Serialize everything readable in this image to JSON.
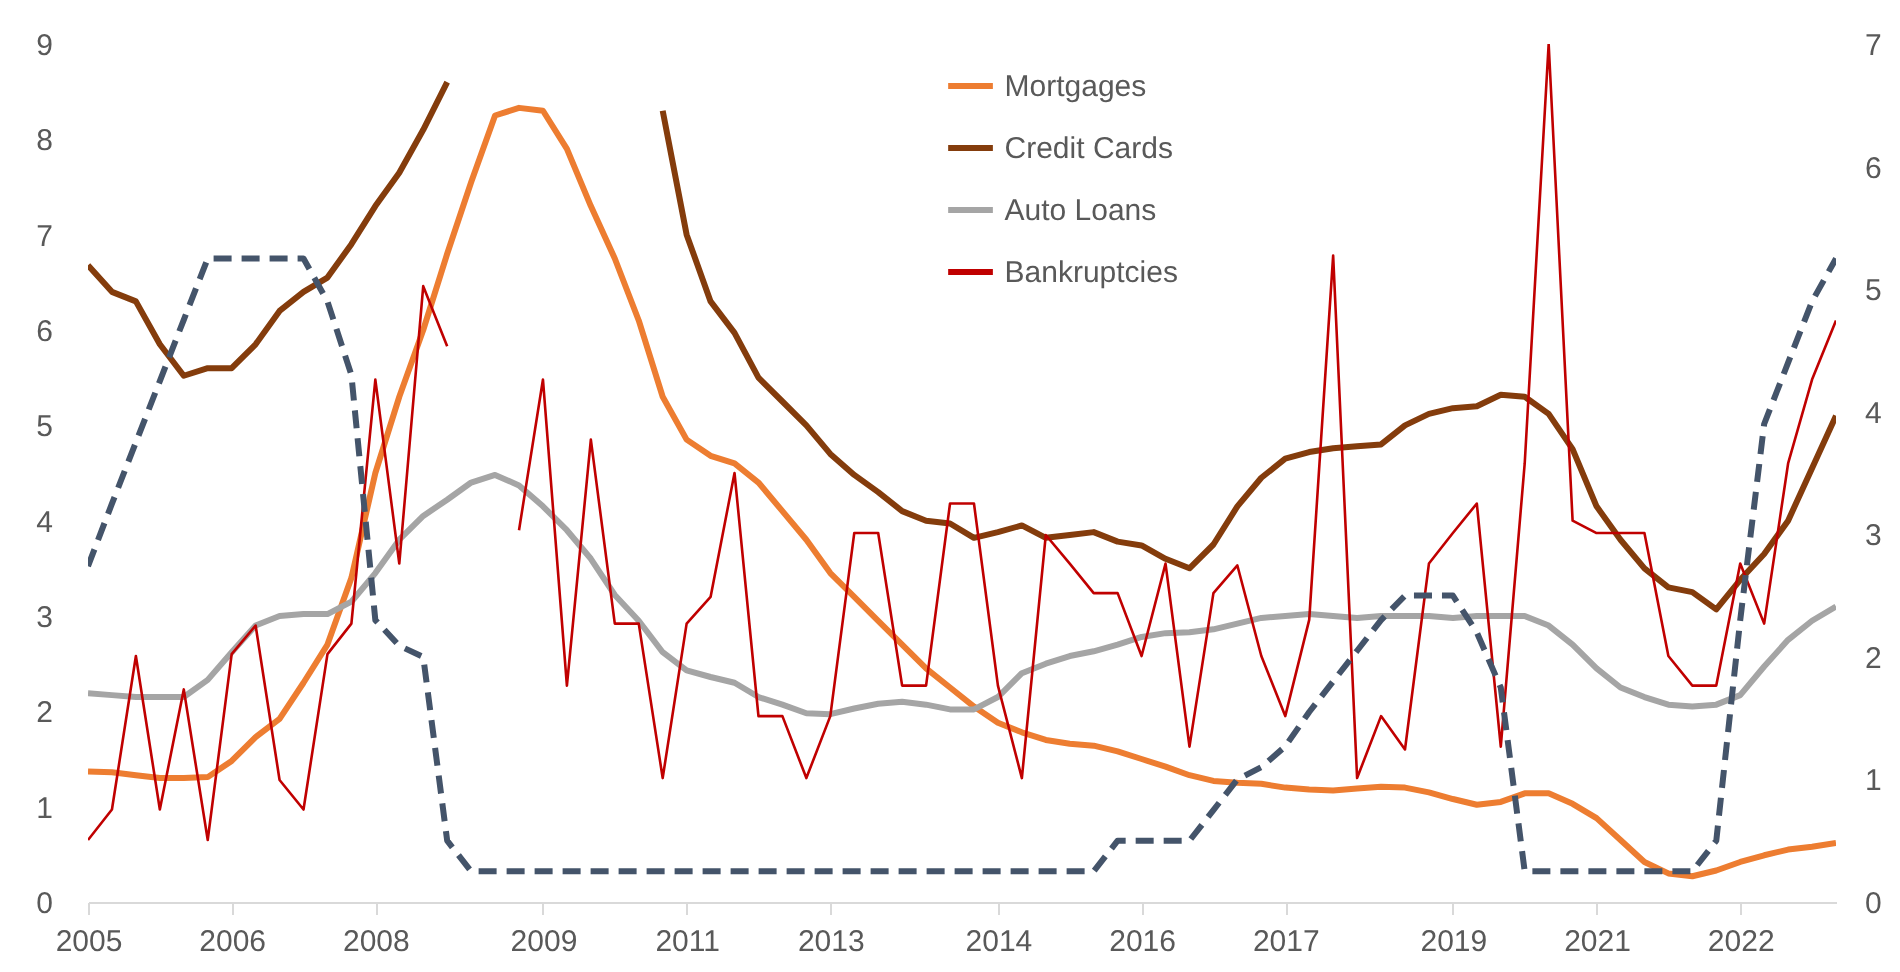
{
  "chart_data": {
    "type": "line",
    "categories": [
      "2005",
      null,
      null,
      null,
      null,
      null,
      "2006",
      null,
      null,
      null,
      null,
      null,
      "2008",
      null,
      null,
      null,
      null,
      null,
      null,
      "2009",
      null,
      null,
      null,
      null,
      null,
      "2011",
      null,
      null,
      null,
      null,
      null,
      "2013",
      null,
      null,
      null,
      null,
      null,
      null,
      "2014",
      null,
      null,
      null,
      null,
      null,
      "2016",
      null,
      null,
      null,
      null,
      null,
      "2017",
      null,
      null,
      null,
      null,
      null,
      null,
      "2019",
      null,
      null,
      null,
      null,
      null,
      "2021",
      null,
      null,
      null,
      null,
      null,
      "2022",
      null,
      null,
      null,
      null
    ],
    "series": [
      {
        "name": "Mortgages",
        "color": "#ed7d31",
        "type": "line",
        "values": [
          1.37,
          1.36,
          1.33,
          1.3,
          1.3,
          1.31,
          1.48,
          1.73,
          1.92,
          2.3,
          2.7,
          3.4,
          4.5,
          5.3,
          6.0,
          6.8,
          7.55,
          8.25,
          8.33,
          8.3,
          7.9,
          7.3,
          6.75,
          6.1,
          5.3,
          4.85,
          4.68,
          4.6,
          4.4,
          4.1,
          3.8,
          3.45,
          3.2,
          2.95,
          2.7,
          2.45,
          2.25,
          2.05,
          1.88,
          1.78,
          1.7,
          1.66,
          1.64,
          1.58,
          1.5,
          1.42,
          1.33,
          1.27,
          1.25,
          1.24,
          1.2,
          1.18,
          1.17,
          1.19,
          1.21,
          1.2,
          1.15,
          1.08,
          1.02,
          1.05,
          1.14,
          1.14,
          1.03,
          0.88,
          0.65,
          0.42,
          0.3,
          0.27,
          0.33,
          0.42,
          0.49,
          0.55,
          0.58,
          0.62
        ]
      },
      {
        "name": "Credit Cards",
        "color": "#843c0c",
        "type": "line",
        "values": [
          6.68,
          6.4,
          6.3,
          5.85,
          5.52,
          5.6,
          5.6,
          5.85,
          6.2,
          6.4,
          6.55,
          6.9,
          7.3,
          7.65,
          8.1,
          8.6,
          null,
          null,
          null,
          null,
          null,
          null,
          null,
          null,
          8.3,
          7.0,
          6.3,
          5.97,
          5.5,
          5.25,
          5.0,
          4.7,
          4.48,
          4.3,
          4.1,
          4.0,
          3.97,
          3.82,
          3.88,
          3.95,
          3.82,
          3.85,
          3.88,
          3.78,
          3.74,
          3.6,
          3.5,
          3.75,
          4.15,
          4.45,
          4.65,
          4.72,
          4.76,
          4.78,
          4.8,
          5.0,
          5.12,
          5.18,
          5.2,
          5.32,
          5.3,
          5.12,
          4.75,
          4.15,
          3.8,
          3.5,
          3.3,
          3.25,
          3.07,
          3.38,
          3.65,
          4.0,
          4.55,
          5.1
        ]
      },
      {
        "name": "Auto Loans",
        "color": "#a5a5a5",
        "type": "line",
        "values": [
          2.19,
          2.17,
          2.15,
          2.15,
          2.15,
          2.33,
          2.62,
          2.9,
          3.0,
          3.02,
          3.02,
          3.15,
          3.45,
          3.8,
          4.05,
          4.22,
          4.4,
          4.48,
          4.37,
          4.15,
          3.9,
          3.6,
          3.22,
          2.95,
          2.62,
          2.43,
          2.36,
          2.3,
          2.15,
          2.07,
          1.98,
          1.97,
          2.03,
          2.08,
          2.1,
          2.07,
          2.02,
          2.02,
          2.15,
          2.4,
          2.5,
          2.58,
          2.63,
          2.7,
          2.78,
          2.82,
          2.83,
          2.86,
          2.92,
          2.98,
          3.0,
          3.02,
          3.0,
          2.98,
          3.0,
          3.0,
          3.0,
          2.98,
          3.0,
          3.0,
          3.0,
          2.9,
          2.7,
          2.45,
          2.25,
          2.15,
          2.07,
          2.05,
          2.07,
          2.17,
          2.47,
          2.75,
          2.95,
          3.1
        ]
      },
      {
        "name": "Bankruptcies",
        "color": "#c00000",
        "type": "line",
        "values": [
          0.65,
          0.97,
          2.58,
          0.97,
          2.23,
          0.65,
          2.6,
          2.9,
          1.28,
          0.97,
          2.6,
          2.92,
          5.48,
          3.55,
          6.46,
          5.83,
          null,
          null,
          3.9,
          5.48,
          2.27,
          4.85,
          2.92,
          2.92,
          1.3,
          2.92,
          3.2,
          4.5,
          1.95,
          1.95,
          1.3,
          1.95,
          3.87,
          3.87,
          2.27,
          2.27,
          4.18,
          4.18,
          2.27,
          1.3,
          3.85,
          3.55,
          3.24,
          3.24,
          2.58,
          3.55,
          1.63,
          3.24,
          3.53,
          2.58,
          1.95,
          2.96,
          6.78,
          1.3,
          1.95,
          1.6,
          3.55,
          3.87,
          4.18,
          1.63,
          4.6,
          9.0,
          4.0,
          3.87,
          3.87,
          3.87,
          2.58,
          2.27,
          2.27,
          3.55,
          2.92,
          4.6,
          5.48,
          6.1
        ]
      },
      {
        "color": "#44546a",
        "type": "line",
        "axis": "y2",
        "line_style": "dashed",
        "values": [
          2.74,
          3.25,
          3.75,
          4.25,
          4.75,
          5.25,
          5.25,
          5.25,
          5.25,
          5.25,
          4.9,
          4.3,
          2.3,
          2.09,
          2.0,
          0.5,
          0.25,
          0.25,
          0.25,
          0.25,
          0.25,
          0.25,
          0.25,
          0.25,
          0.25,
          0.25,
          0.25,
          0.25,
          0.25,
          0.25,
          0.25,
          0.25,
          0.25,
          0.25,
          0.25,
          0.25,
          0.25,
          0.25,
          0.25,
          0.25,
          0.25,
          0.25,
          0.25,
          0.5,
          0.5,
          0.5,
          0.5,
          0.75,
          1.0,
          1.1,
          1.27,
          1.55,
          1.8,
          2.05,
          2.3,
          2.5,
          2.5,
          2.5,
          2.2,
          1.75,
          0.25,
          0.25,
          0.25,
          0.25,
          0.25,
          0.25,
          0.25,
          0.25,
          0.5,
          2.3,
          3.9,
          4.4,
          4.9,
          5.25
        ]
      }
    ],
    "ylim": [
      0,
      9
    ],
    "yticks": [
      0,
      1,
      2,
      3,
      4,
      5,
      6,
      7,
      8,
      9
    ],
    "y2lim": [
      0,
      7
    ],
    "y2ticks": [
      0,
      1,
      2,
      3,
      4,
      5,
      6,
      7
    ],
    "legend": "top"
  }
}
